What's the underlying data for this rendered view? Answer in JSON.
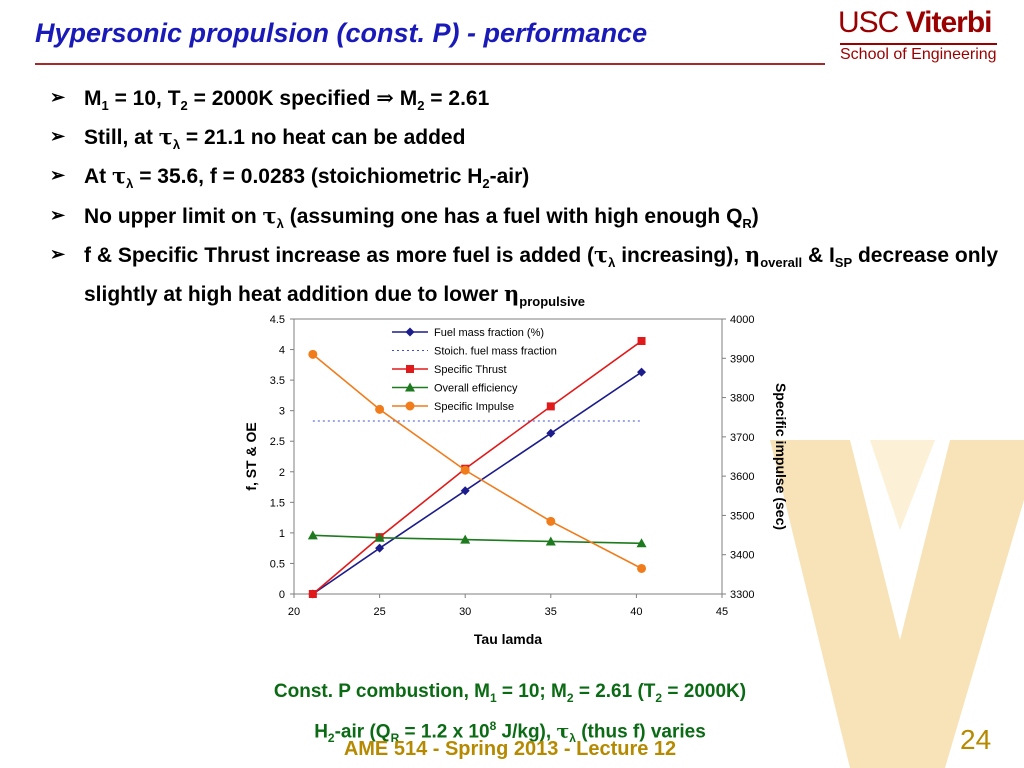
{
  "slide": {
    "title": "Hypersonic propulsion (const. P) - performance",
    "logo": {
      "usc": "USC",
      "viterbi": "Viterbi",
      "school": "School of Engineering"
    },
    "bullets": [
      {
        "parts": [
          [
            "t",
            "M"
          ],
          [
            "s",
            "1"
          ],
          [
            "t",
            " = 10, T"
          ],
          [
            "s",
            "2"
          ],
          [
            "t",
            " = 2000K specified "
          ],
          [
            "g",
            "⇒"
          ],
          [
            "t",
            " M"
          ],
          [
            "s",
            "2"
          ],
          [
            "t",
            " = 2.61"
          ]
        ]
      },
      {
        "parts": [
          [
            "t",
            "Still, at "
          ],
          [
            "g",
            "τ"
          ],
          [
            "s",
            "λ"
          ],
          [
            "t",
            " = 21.1 no heat can be added"
          ]
        ]
      },
      {
        "parts": [
          [
            "t",
            "At "
          ],
          [
            "g",
            "τ"
          ],
          [
            "s",
            "λ"
          ],
          [
            "t",
            " = 35.6, f = 0.0283 (stoichiometric H"
          ],
          [
            "s",
            "2"
          ],
          [
            "t",
            "-air)"
          ]
        ]
      },
      {
        "parts": [
          [
            "t",
            "No upper limit on "
          ],
          [
            "g",
            "τ"
          ],
          [
            "s",
            "λ"
          ],
          [
            "t",
            " (assuming one has a fuel with high enough Q"
          ],
          [
            "s",
            "R"
          ],
          [
            "t",
            ")"
          ]
        ]
      },
      {
        "parts": [
          [
            "t",
            "f & Specific Thrust increase as more fuel is added ("
          ],
          [
            "g",
            "τ"
          ],
          [
            "s",
            "λ"
          ],
          [
            "t",
            " increasing), "
          ],
          [
            "g",
            "η"
          ],
          [
            "s",
            "overall"
          ],
          [
            "t",
            " & I"
          ],
          [
            "s",
            "SP"
          ],
          [
            "t",
            " decrease only slightly at high heat addition due to lower "
          ],
          [
            "g",
            "η"
          ],
          [
            "s",
            "propulsive"
          ]
        ]
      }
    ],
    "bullet_marker": "➢",
    "caption_line1": [
      [
        "t",
        "Const. P combustion, M"
      ],
      [
        "s",
        "1"
      ],
      [
        "t",
        " = 10; M"
      ],
      [
        "s",
        "2"
      ],
      [
        "t",
        " = 2.61 (T"
      ],
      [
        "s",
        "2"
      ],
      [
        "t",
        " = 2000K)"
      ]
    ],
    "caption_line2": [
      [
        "t",
        "H"
      ],
      [
        "s",
        "2"
      ],
      [
        "t",
        "-air (Q"
      ],
      [
        "s",
        "R"
      ],
      [
        "t",
        " = 1.2 x 10"
      ],
      [
        "p",
        "8"
      ],
      [
        "t",
        " J/kg), "
      ],
      [
        "g",
        "τ"
      ],
      [
        "s",
        "λ"
      ],
      [
        "t",
        " (thus f) varies"
      ]
    ],
    "footer": "AME 514 - Spring 2013 - Lecture 12",
    "page_number": "24"
  },
  "colors": {
    "title": "#1a1ab8",
    "caption": "#0b6b14",
    "footer": "#b58a00",
    "watermark": "#f3c46b"
  },
  "chart_data": {
    "type": "line",
    "xlabel": "Tau lamda",
    "ylabel": "f, ST & OE",
    "y2label": "Specific impulse (sec)",
    "xlim": [
      20,
      45
    ],
    "ylim": [
      0,
      4.5
    ],
    "y2lim": [
      3300,
      4000
    ],
    "xticks": [
      "20",
      "25",
      "30",
      "35",
      "40",
      "45"
    ],
    "yticks": [
      "0",
      "0.5",
      "1",
      "1.5",
      "2",
      "2.5",
      "3",
      "3.5",
      "4",
      "4.5"
    ],
    "y2ticks": [
      "3300",
      "3400",
      "3500",
      "3600",
      "3700",
      "3800",
      "3900",
      "4000"
    ],
    "grid": false,
    "legend_position": "top-center",
    "series": [
      {
        "name": "Fuel mass fraction (%)",
        "axis": "left",
        "color": "#1c1c8c",
        "marker": "diamond",
        "dash": false,
        "x": [
          21.1,
          25.0,
          30.0,
          35.0,
          40.3
        ],
        "y": [
          0.0,
          0.75,
          1.69,
          2.63,
          3.63
        ]
      },
      {
        "name": "Stoich. fuel mass fraction",
        "axis": "left",
        "color": "#3b4fd6",
        "marker": "none",
        "dash": true,
        "x": [
          21.1,
          40.3
        ],
        "y": [
          2.83,
          2.83
        ]
      },
      {
        "name": "Specific Thrust",
        "axis": "left",
        "color": "#e01a1a",
        "marker": "square",
        "dash": false,
        "x": [
          21.1,
          25.0,
          30.0,
          35.0,
          40.3
        ],
        "y": [
          0.0,
          0.93,
          2.05,
          3.07,
          4.14
        ]
      },
      {
        "name": "Overall efficiency",
        "axis": "left",
        "color": "#1e7a1e",
        "marker": "triangle",
        "dash": false,
        "x": [
          21.1,
          25.0,
          30.0,
          35.0,
          40.3
        ],
        "y": [
          0.96,
          0.92,
          0.89,
          0.86,
          0.83
        ]
      },
      {
        "name": "Specific Impulse",
        "axis": "right",
        "color": "#f07c1c",
        "marker": "circle",
        "dash": false,
        "x": [
          21.1,
          25.0,
          30.0,
          35.0,
          40.3
        ],
        "y": [
          3910,
          3770,
          3615,
          3485,
          3365
        ]
      }
    ]
  }
}
